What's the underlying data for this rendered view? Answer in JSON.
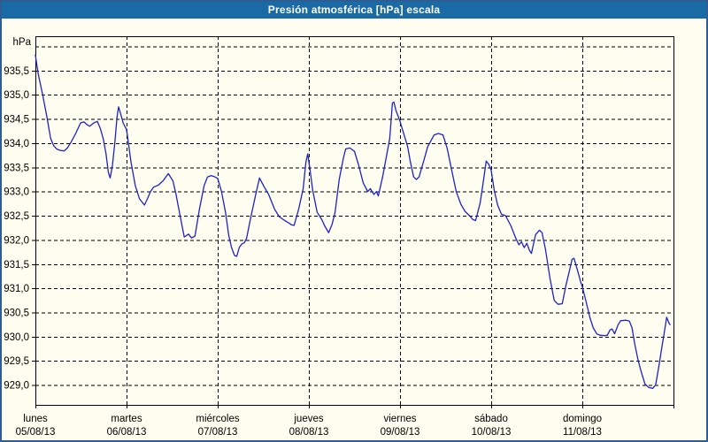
{
  "window": {
    "title_bar": {
      "title": "Presión atmosférica [hPa] escala"
    },
    "colors": {
      "window_border": "#2e5d94",
      "window_bg": "#fdfdf0",
      "title_bar_bg": "#1a6aa5",
      "title_text": "#ffffff",
      "plot_border": "#000000",
      "grid": "#000000",
      "label_text": "#000000",
      "line": "#2121c8"
    }
  },
  "chart_data": {
    "type": "line",
    "title": "Presión atmosférica [hPa] escala",
    "y_unit_label": "hPa",
    "decimal_separator": ",",
    "ylabel": "hPa",
    "xlabel": "",
    "grid": true,
    "ylim": [
      928.59,
      936.21
    ],
    "y_label_values": [
      935.5,
      935.0,
      934.5,
      934.0,
      933.5,
      933.0,
      932.5,
      932.0,
      931.5,
      931.0,
      930.5,
      930.0,
      929.5,
      929.0
    ],
    "y_grid_values": [
      936.0,
      935.5,
      935.0,
      934.5,
      934.0,
      933.5,
      933.0,
      932.5,
      932.0,
      931.5,
      931.0,
      930.5,
      930.0,
      929.5,
      929.0
    ],
    "x_total_hours": 168,
    "x_day_width_hours": 24,
    "x_ticks": [
      {
        "weekday": "lunes",
        "date": "05/08/13",
        "hour": 0
      },
      {
        "weekday": "martes",
        "date": "06/08/13",
        "hour": 24
      },
      {
        "weekday": "miércoles",
        "date": "07/08/13",
        "hour": 48
      },
      {
        "weekday": "jueves",
        "date": "08/08/13",
        "hour": 72
      },
      {
        "weekday": "viernes",
        "date": "09/08/13",
        "hour": 96
      },
      {
        "weekday": "sábado",
        "date": "10/08/13",
        "hour": 120
      },
      {
        "weekday": "domingo",
        "date": "11/08/13",
        "hour": 144
      }
    ],
    "series": [
      {
        "name": "Presión atmosférica",
        "color": "#2121c8",
        "points": [
          [
            0,
            935.82
          ],
          [
            0.7,
            935.45
          ],
          [
            1.9,
            935.0
          ],
          [
            3,
            934.55
          ],
          [
            4,
            934.1
          ],
          [
            4.8,
            933.95
          ],
          [
            5.6,
            933.88
          ],
          [
            6.5,
            933.85
          ],
          [
            7.6,
            933.84
          ],
          [
            8.4,
            933.9
          ],
          [
            9.4,
            934.02
          ],
          [
            10.6,
            934.2
          ],
          [
            11.9,
            934.42
          ],
          [
            12.8,
            934.44
          ],
          [
            13.6,
            934.38
          ],
          [
            14.3,
            934.35
          ],
          [
            15.4,
            934.42
          ],
          [
            16.3,
            934.45
          ],
          [
            17.1,
            934.3
          ],
          [
            17.9,
            934.08
          ],
          [
            18.6,
            933.78
          ],
          [
            19.2,
            933.4
          ],
          [
            19.7,
            933.28
          ],
          [
            20.3,
            933.55
          ],
          [
            20.9,
            934.0
          ],
          [
            21.5,
            934.55
          ],
          [
            21.9,
            934.75
          ],
          [
            22.4,
            934.62
          ],
          [
            23.1,
            934.42
          ],
          [
            24,
            934.28
          ],
          [
            25.2,
            933.6
          ],
          [
            26.3,
            933.12
          ],
          [
            27.4,
            932.85
          ],
          [
            28.7,
            932.72
          ],
          [
            29.5,
            932.85
          ],
          [
            30.3,
            933.0
          ],
          [
            31.1,
            933.09
          ],
          [
            32.3,
            933.13
          ],
          [
            33.6,
            933.22
          ],
          [
            35,
            933.37
          ],
          [
            36.2,
            933.22
          ],
          [
            37,
            932.95
          ],
          [
            38.1,
            932.5
          ],
          [
            39.2,
            932.06
          ],
          [
            40.3,
            932.12
          ],
          [
            41.1,
            932.04
          ],
          [
            42,
            932.08
          ],
          [
            43.2,
            932.64
          ],
          [
            44.4,
            933.12
          ],
          [
            45.3,
            933.3
          ],
          [
            46.3,
            933.33
          ],
          [
            47.3,
            933.3
          ],
          [
            48,
            933.27
          ],
          [
            49,
            933.0
          ],
          [
            50.1,
            932.55
          ],
          [
            50.9,
            932.1
          ],
          [
            51.6,
            931.85
          ],
          [
            52.4,
            931.68
          ],
          [
            53,
            931.66
          ],
          [
            53.7,
            931.85
          ],
          [
            54.4,
            931.92
          ],
          [
            55,
            931.94
          ],
          [
            55.6,
            932.03
          ],
          [
            56.7,
            932.46
          ],
          [
            57.9,
            932.9
          ],
          [
            59,
            933.28
          ],
          [
            60.2,
            933.1
          ],
          [
            61.4,
            932.94
          ],
          [
            63,
            932.63
          ],
          [
            64.2,
            932.48
          ],
          [
            65.3,
            932.42
          ],
          [
            66.5,
            932.36
          ],
          [
            67.5,
            932.31
          ],
          [
            68.1,
            932.3
          ],
          [
            69.3,
            932.63
          ],
          [
            70.5,
            933.06
          ],
          [
            71.2,
            933.6
          ],
          [
            71.7,
            933.78
          ],
          [
            72.3,
            933.45
          ],
          [
            73,
            933.03
          ],
          [
            74.2,
            932.57
          ],
          [
            75.4,
            932.42
          ],
          [
            76.1,
            932.3
          ],
          [
            77.2,
            932.15
          ],
          [
            78.1,
            932.32
          ],
          [
            78.9,
            932.57
          ],
          [
            80,
            933.25
          ],
          [
            81.1,
            933.7
          ],
          [
            81.7,
            933.88
          ],
          [
            82.8,
            933.9
          ],
          [
            84,
            933.83
          ],
          [
            85.1,
            933.55
          ],
          [
            86.3,
            933.18
          ],
          [
            87.5,
            933.0
          ],
          [
            88.2,
            933.06
          ],
          [
            89.1,
            932.94
          ],
          [
            89.8,
            933.0
          ],
          [
            90.3,
            932.91
          ],
          [
            91.4,
            933.3
          ],
          [
            92.6,
            933.8
          ],
          [
            93.3,
            934.1
          ],
          [
            94,
            934.83
          ],
          [
            94.4,
            934.85
          ],
          [
            94.9,
            934.68
          ],
          [
            96,
            934.45
          ],
          [
            98,
            933.93
          ],
          [
            98.7,
            933.62
          ],
          [
            99.6,
            933.3
          ],
          [
            100.3,
            933.25
          ],
          [
            101,
            933.3
          ],
          [
            102.2,
            933.62
          ],
          [
            103.3,
            933.93
          ],
          [
            105,
            934.17
          ],
          [
            106.1,
            934.2
          ],
          [
            107.3,
            934.17
          ],
          [
            108.4,
            933.9
          ],
          [
            109.6,
            933.44
          ],
          [
            110.8,
            933.0
          ],
          [
            112,
            932.74
          ],
          [
            113.1,
            932.59
          ],
          [
            114.3,
            932.5
          ],
          [
            115.2,
            932.42
          ],
          [
            115.9,
            932.4
          ],
          [
            117.1,
            932.77
          ],
          [
            117.8,
            933.14
          ],
          [
            118.7,
            933.63
          ],
          [
            119.4,
            933.56
          ],
          [
            120,
            933.44
          ],
          [
            120.8,
            933.03
          ],
          [
            121.7,
            932.72
          ],
          [
            122.7,
            932.53
          ],
          [
            123.8,
            932.5
          ],
          [
            125.2,
            932.29
          ],
          [
            126.4,
            932.05
          ],
          [
            127.3,
            931.9
          ],
          [
            128,
            931.96
          ],
          [
            128.7,
            931.84
          ],
          [
            129.4,
            931.93
          ],
          [
            130.1,
            931.78
          ],
          [
            130.6,
            931.72
          ],
          [
            131.7,
            932.11
          ],
          [
            132.7,
            932.2
          ],
          [
            133.4,
            932.15
          ],
          [
            134.3,
            931.8
          ],
          [
            135.5,
            931.2
          ],
          [
            136.6,
            930.75
          ],
          [
            137.6,
            930.67
          ],
          [
            138.7,
            930.68
          ],
          [
            139.7,
            931.06
          ],
          [
            140.6,
            931.36
          ],
          [
            141.3,
            931.6
          ],
          [
            141.8,
            931.62
          ],
          [
            142.7,
            931.38
          ],
          [
            143.6,
            931.12
          ],
          [
            144,
            931.03
          ],
          [
            145,
            930.72
          ],
          [
            146,
            930.39
          ],
          [
            146.9,
            930.18
          ],
          [
            147.8,
            930.06
          ],
          [
            148.6,
            930.03
          ],
          [
            149.9,
            930.02
          ],
          [
            150.6,
            930.03
          ],
          [
            151.3,
            930.14
          ],
          [
            151.8,
            930.16
          ],
          [
            152.5,
            930.06
          ],
          [
            153.4,
            930.24
          ],
          [
            154.1,
            930.33
          ],
          [
            155.5,
            930.34
          ],
          [
            156.4,
            930.32
          ],
          [
            157.1,
            930.18
          ],
          [
            157.8,
            929.85
          ],
          [
            158.6,
            929.54
          ],
          [
            159.4,
            929.3
          ],
          [
            160.5,
            929.02
          ],
          [
            161.5,
            928.95
          ],
          [
            162.5,
            928.93
          ],
          [
            163.3,
            929.0
          ],
          [
            164.2,
            929.41
          ],
          [
            165,
            929.81
          ],
          [
            165.7,
            930.14
          ],
          [
            166.2,
            930.4
          ],
          [
            166.8,
            930.28
          ],
          [
            167.1,
            930.25
          ]
        ]
      }
    ]
  }
}
